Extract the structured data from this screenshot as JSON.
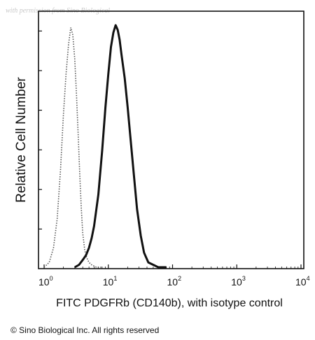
{
  "watermark": "with permission from Sino Biological",
  "copyright": "© Sino Biological Inc. All rights reserved",
  "chart_data": {
    "type": "line",
    "xscale": "log",
    "xlim": [
      1,
      10000
    ],
    "ylim": [
      0,
      100
    ],
    "xlabel": "FITC PDGFRb (CD140b), with isotype control",
    "ylabel": "Relative Cell Number",
    "xticks": [
      {
        "base": "10",
        "exp": "0",
        "value": 1
      },
      {
        "base": "10",
        "exp": "1",
        "value": 10
      },
      {
        "base": "10",
        "exp": "2",
        "value": 100
      },
      {
        "base": "10",
        "exp": "3",
        "value": 1000
      },
      {
        "base": "10",
        "exp": "4",
        "value": 10000
      }
    ],
    "grid": false,
    "series": [
      {
        "style": "dotted",
        "color": "#555555",
        "x": [
          1.0,
          1.2,
          1.4,
          1.6,
          1.8,
          2.0,
          2.2,
          2.4,
          2.6,
          2.8,
          3.0,
          3.2,
          3.4,
          3.6,
          3.8,
          4.0,
          4.3,
          4.6,
          5.0,
          5.5,
          6.0,
          6.5,
          7.0,
          8.0
        ],
        "y": [
          0,
          2,
          8,
          20,
          40,
          63,
          80,
          92,
          99,
          96,
          86,
          71,
          54,
          38,
          24,
          14,
          7,
          4,
          2,
          1,
          0.5,
          0,
          0,
          0
        ]
      },
      {
        "style": "solid",
        "color": "#111111",
        "x": [
          3.0,
          3.5,
          4.0,
          4.5,
          5.0,
          5.5,
          6.0,
          7.0,
          8.0,
          9.0,
          10.0,
          11.0,
          12.0,
          13.0,
          14.0,
          15.0,
          16.0,
          18.0,
          20.0,
          22.0,
          25.0,
          28.0,
          32.0,
          36.0,
          42.0,
          50.0,
          60.0,
          80.0
        ],
        "y": [
          0,
          1,
          3,
          5,
          8,
          12,
          17,
          30,
          48,
          66,
          80,
          91,
          97,
          100,
          98,
          94,
          88,
          78,
          66,
          54,
          38,
          24,
          13,
          6,
          2,
          1,
          0,
          0
        ]
      }
    ]
  }
}
